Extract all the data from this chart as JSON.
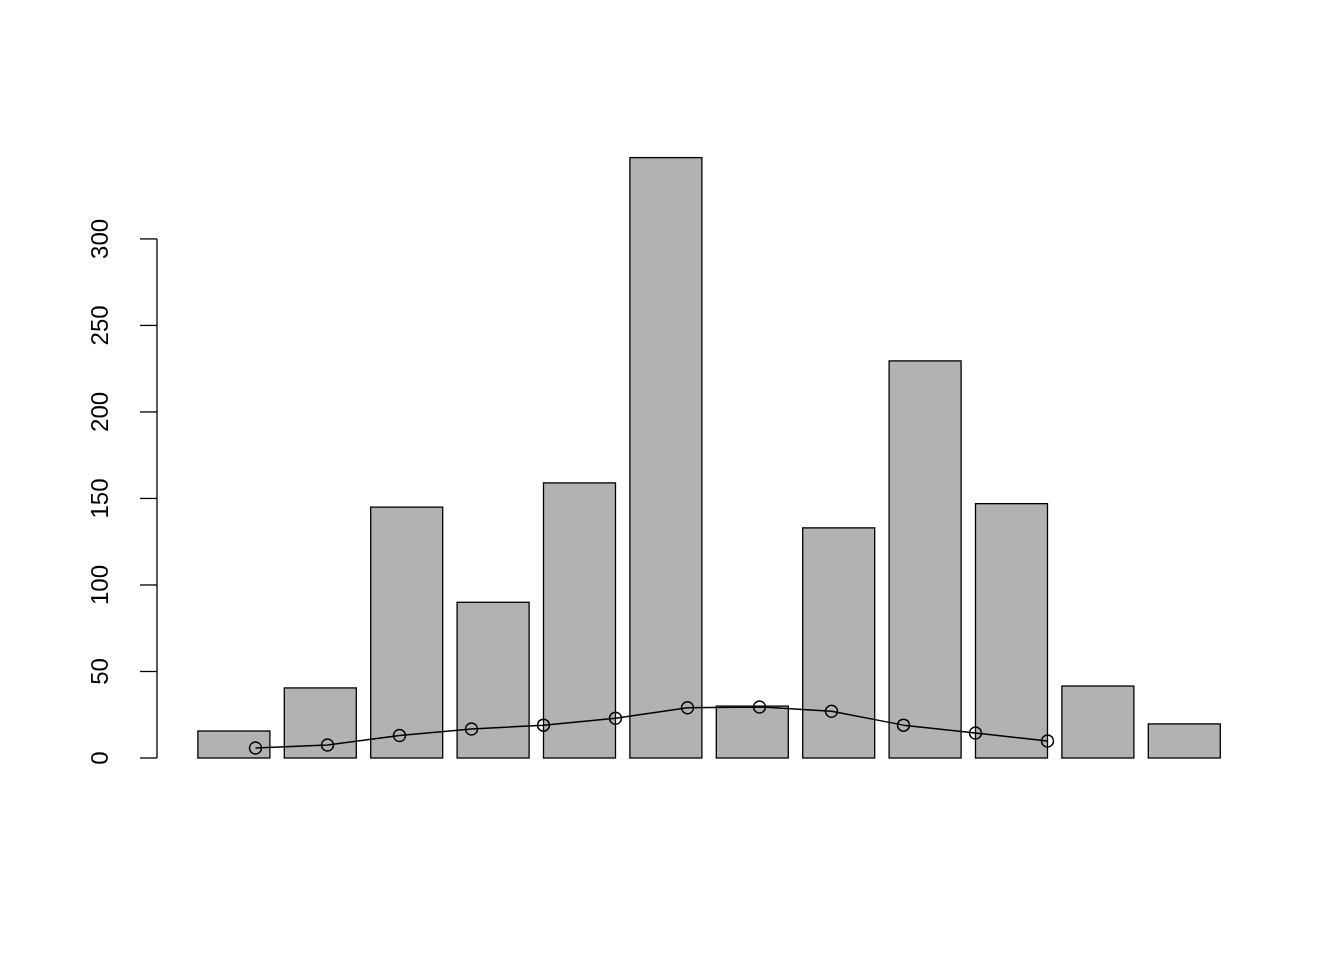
{
  "chart_data": [
    {
      "type": "bar",
      "categories": [
        null,
        null,
        null,
        null,
        null,
        null,
        null,
        null,
        null,
        null,
        null,
        null
      ],
      "color": "#b2b2b2",
      "values": [
        15.6,
        40.5,
        145,
        90,
        159,
        347,
        30,
        133,
        229.5,
        147,
        41.6,
        19.7
      ],
      "ylim": [
        0,
        347
      ],
      "yticks": [
        0,
        50,
        100,
        150,
        200,
        250,
        300
      ],
      "tick_labels": "y",
      "grid": false
    },
    {
      "type": "line",
      "categories": [
        null,
        null,
        null,
        null,
        null,
        null,
        null,
        null,
        null,
        null,
        null,
        null
      ],
      "color": "#000000",
      "marker": "circle",
      "line_style": "solid",
      "values": [
        5.8,
        7.5,
        13,
        16.8,
        19,
        23,
        29,
        29.5,
        27,
        19,
        14.5,
        9.8
      ],
      "yticks": [
        0,
        50,
        100,
        150,
        200,
        250,
        300
      ],
      "tick_labels": false,
      "grid": false
    }
  ]
}
